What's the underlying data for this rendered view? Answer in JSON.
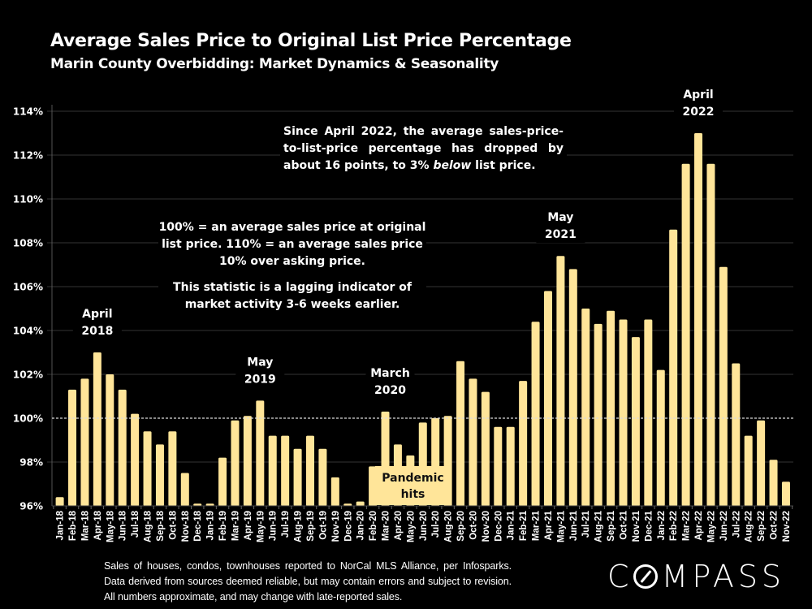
{
  "header": {
    "title": "Average Sales Price to Original List Price Percentage",
    "subtitle": "Marin County Overbidding: Market Dynamics & Seasonality"
  },
  "callouts": {
    "decline_before": "Since April 2022, the average sales-price-to-list-price percentage has dropped by about 16 points, to 3% ",
    "decline_emphasis": "below",
    "decline_after": " list price.",
    "definition": "100% = an average sales price at original list price. 110% = an average sales price 10% over asking price.",
    "lagging": "This statistic is a lagging indicator of market activity 3-6 weeks earlier.",
    "pandemic": "Pandemic hits"
  },
  "footer": {
    "disclaimer": "Sales of houses, condos, townhouses reported to NorCal MLS Alliance, per Infosparks. Data derived from sources deemed reliable, but may contain errors and subject to revision. All numbers approximate, and may change with late-reported sales.",
    "logo_pre": "C",
    "logo_post": "MPASS"
  },
  "colors": {
    "bar": "#FFE599",
    "background": "#000000",
    "gridline": "#2a2a2a",
    "reference_line": "#d9d9d9"
  },
  "chart_data": {
    "type": "bar",
    "title": "Average Sales Price to Original List Price Percentage",
    "subtitle": "Marin County Overbidding: Market Dynamics & Seasonality",
    "xlabel": "",
    "ylabel": "",
    "ylim": [
      96,
      114
    ],
    "yticks": [
      96,
      98,
      100,
      102,
      104,
      106,
      108,
      110,
      112,
      114
    ],
    "ytick_format": "{v}%",
    "grid": true,
    "reference_line": {
      "value": 100,
      "style": "dashed"
    },
    "categories": [
      "Jan-18",
      "Feb-18",
      "Mar-18",
      "Apr-18",
      "May-18",
      "Jun-18",
      "Jul-18",
      "Aug-18",
      "Sep-18",
      "Oct-18",
      "Nov-18",
      "Dec-18",
      "Jan-19",
      "Feb-19",
      "Mar-19",
      "Apr-19",
      "May-19",
      "Jun-19",
      "Jul-19",
      "Aug-19",
      "Sep-19",
      "Oct-19",
      "Nov-19",
      "Dec-19",
      "Jan-20",
      "Feb-20",
      "Mar-20",
      "Apr-20",
      "May-20",
      "Jun-20",
      "Jul-20",
      "Aug-20",
      "Sep-20",
      "Oct-20",
      "Nov-20",
      "Dec-20",
      "Jan-21",
      "Feb-21",
      "Mar-21",
      "Apr-21",
      "May-21",
      "Jun-21",
      "Jul-21",
      "Aug-21",
      "Sep-21",
      "Oct-21",
      "Nov-21",
      "Dec-21",
      "Jan-22",
      "Feb-22",
      "Mar-22",
      "Apr-22",
      "May-22",
      "Jun-22",
      "Jul-22",
      "Aug-22",
      "Sep-22",
      "Oct-22",
      "Nov-22"
    ],
    "values": [
      96.4,
      101.3,
      101.8,
      103.0,
      102.0,
      101.3,
      100.2,
      99.4,
      98.8,
      99.4,
      97.5,
      96.1,
      96.1,
      98.2,
      99.9,
      100.1,
      100.8,
      99.2,
      99.2,
      98.6,
      99.2,
      98.6,
      97.3,
      96.1,
      96.2,
      97.8,
      100.3,
      98.8,
      98.3,
      99.8,
      100.0,
      100.1,
      102.6,
      101.8,
      101.2,
      99.6,
      99.6,
      101.7,
      104.4,
      105.8,
      107.4,
      106.8,
      105.0,
      104.3,
      104.9,
      104.5,
      103.7,
      104.5,
      102.2,
      108.6,
      111.6,
      113.0,
      111.6,
      106.9,
      102.5,
      99.2,
      99.9,
      98.1,
      97.1
    ],
    "annotations": [
      {
        "label_line1": "April",
        "label_line2": "2018",
        "category": "Apr-18"
      },
      {
        "label_line1": "May",
        "label_line2": "2019",
        "category": "May-19"
      },
      {
        "label_line1": "March",
        "label_line2": "2020",
        "category": "Mar-20"
      },
      {
        "label_line1": "May",
        "label_line2": "2021",
        "category": "May-21"
      },
      {
        "label_line1": "April",
        "label_line2": "2022",
        "category": "Apr-22"
      }
    ],
    "legend": null
  }
}
